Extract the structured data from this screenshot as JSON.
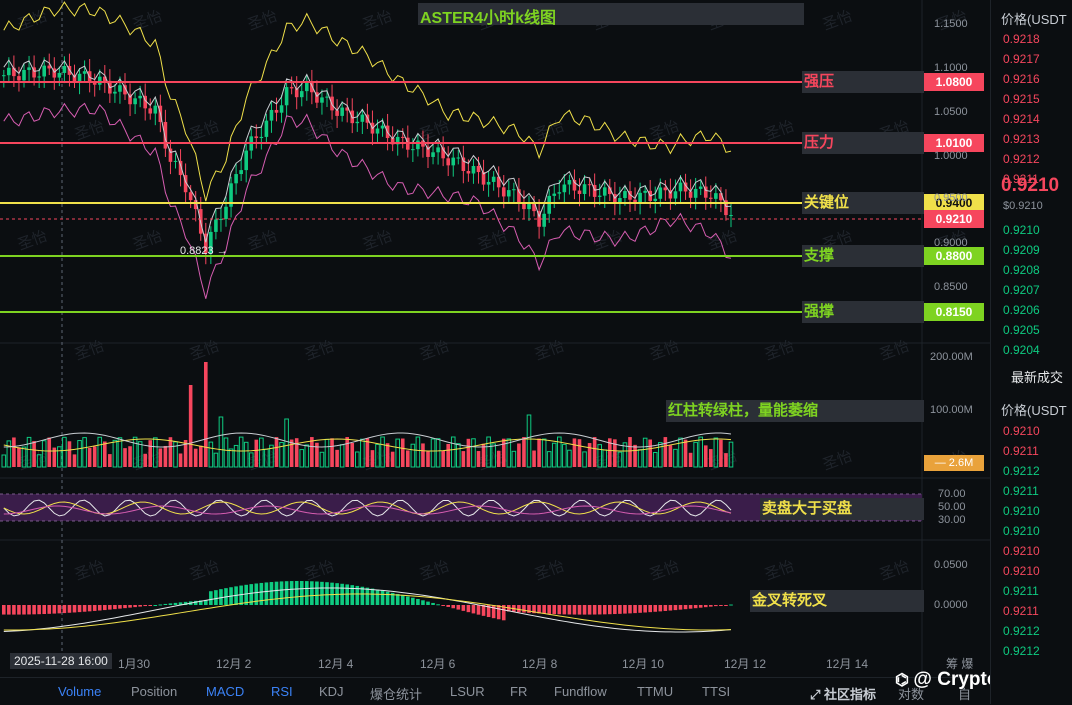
{
  "title": "ASTER4小时k线图",
  "right_panel": {
    "header": "价格(USDT",
    "asks": [
      "0.9218",
      "0.9217",
      "0.9216",
      "0.9215",
      "0.9214",
      "0.9213",
      "0.9212",
      "0.9211"
    ],
    "last_price": "0.9210",
    "last_sub": "$0.9210",
    "bids": [
      "0.9210",
      "0.9209",
      "0.9208",
      "0.9207",
      "0.9206",
      "0.9205",
      "0.9204"
    ],
    "trades_title": "最新成交",
    "trades_header": "价格(USDT",
    "trades": [
      {
        "p": "0.9210",
        "c": "#f6465d"
      },
      {
        "p": "0.9211",
        "c": "#f6465d"
      },
      {
        "p": "0.9212",
        "c": "#0ecb81"
      },
      {
        "p": "0.9211",
        "c": "#0ecb81"
      },
      {
        "p": "0.9210",
        "c": "#0ecb81"
      },
      {
        "p": "0.9210",
        "c": "#0ecb81"
      },
      {
        "p": "0.9210",
        "c": "#f6465d"
      },
      {
        "p": "0.9210",
        "c": "#f6465d"
      },
      {
        "p": "0.9211",
        "c": "#0ecb81"
      },
      {
        "p": "0.9211",
        "c": "#f6465d"
      },
      {
        "p": "0.9212",
        "c": "#0ecb81"
      },
      {
        "p": "0.9212",
        "c": "#0ecb81"
      }
    ]
  },
  "levels": [
    {
      "label": "强压",
      "price": "1.0800",
      "color": "#f6465d",
      "tag_bg": "#f6465d"
    },
    {
      "label": "压力",
      "price": "1.0100",
      "color": "#f6465d",
      "tag_bg": "#f6465d"
    },
    {
      "label": "关键位",
      "price": "0.9400",
      "color": "#f0e04a",
      "tag_bg": "#f0e04a"
    },
    {
      "label": "支撑",
      "price": "0.8800",
      "color": "#7ed321",
      "tag_bg": "#7ed321"
    },
    {
      "label": "强撑",
      "price": "0.8150",
      "color": "#7ed321",
      "tag_bg": "#7ed321"
    }
  ],
  "current_price_tag": "0.9210",
  "low_marker": "0.8823",
  "price_axis": [
    "1.1500",
    "1.1000",
    "1.0500",
    "1.0000",
    "0.9500",
    "0.9000",
    "0.8500"
  ],
  "volume_axis": [
    "200.00M",
    "100.00M"
  ],
  "volume_tag": "2.6M",
  "rsi_axis": [
    "70.00",
    "50.00",
    "30.00"
  ],
  "macd_axis": [
    "0.0500",
    "0.0000"
  ],
  "annotations": {
    "volume": "红柱转绿柱，量能萎缩",
    "rsi": "卖盘大于买盘",
    "macd": "金叉转死叉"
  },
  "x_axis": {
    "cursor_label": "2025-11-28 16:00",
    "ticks": [
      "1月30",
      "12月 2",
      "12月 4",
      "12月 6",
      "12月 8",
      "12月 10",
      "12月 12",
      "12月 14"
    ],
    "extra": "筹 爆"
  },
  "tabs": [
    "Volume",
    "Position",
    "MACD",
    "RSI",
    "KDJ",
    "爆仓统计",
    "LSUR",
    "FR",
    "Fundflow",
    "TTMU",
    "TTSI"
  ],
  "active_tabs": [
    "Volume",
    "MACD",
    "RSI"
  ],
  "bottom_right": {
    "community": "社区指标",
    "pair": "对数",
    "auto": "自"
  },
  "watermark_text": "圣怡",
  "author": "@ Crypto圣怡",
  "colors": {
    "up": "#0ecb81",
    "down": "#f6465d",
    "bg": "#0b0e11",
    "accent": "#3b82f6"
  }
}
